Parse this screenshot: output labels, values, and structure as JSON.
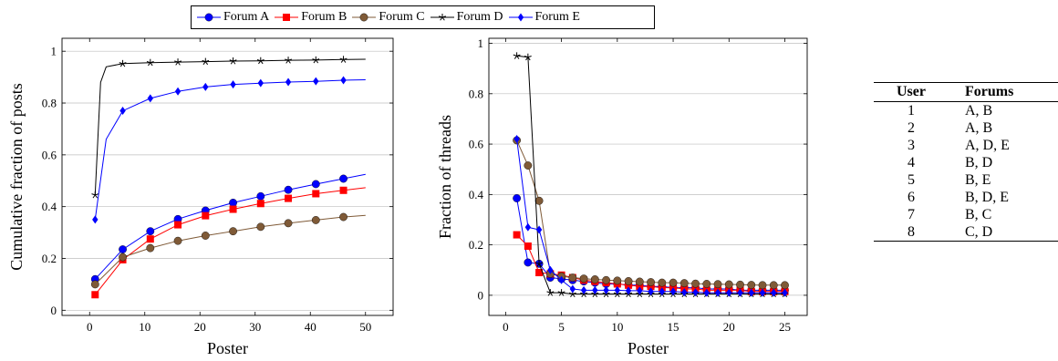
{
  "legend": [
    {
      "name": "Forum A",
      "color": "#0000ff",
      "marker": "circle"
    },
    {
      "name": "Forum B",
      "color": "#ff0000",
      "marker": "square"
    },
    {
      "name": "Forum C",
      "color": "#7f5a37",
      "marker": "circle"
    },
    {
      "name": "Forum D",
      "color": "#000000",
      "marker": "star"
    },
    {
      "name": "Forum E",
      "color": "#0000ff",
      "marker": "diamond"
    }
  ],
  "chart_data": [
    {
      "type": "line",
      "xlabel": "Poster",
      "ylabel": "Cumulative fraction of posts",
      "xlim": [
        -5,
        55
      ],
      "ylim": [
        -0.02,
        1.05
      ],
      "xticks": [
        0,
        10,
        20,
        30,
        40,
        50
      ],
      "yticks": [
        0,
        0.2,
        0.4,
        0.6,
        0.8,
        1
      ],
      "ytick_labels": [
        "0",
        "0.2",
        "0.4",
        "0.6",
        "0.8",
        "1"
      ],
      "grid": "horizontal",
      "series": [
        {
          "name": "Forum A",
          "x": [
            1,
            6,
            11,
            16,
            21,
            26,
            31,
            36,
            41,
            46,
            50
          ],
          "y": [
            0.12,
            0.235,
            0.305,
            0.352,
            0.385,
            0.415,
            0.44,
            0.465,
            0.487,
            0.508,
            0.525
          ],
          "marker_x": [
            1,
            6,
            11,
            16,
            21,
            26,
            31,
            36,
            41,
            46
          ]
        },
        {
          "name": "Forum B",
          "x": [
            1,
            6,
            11,
            16,
            21,
            26,
            31,
            36,
            41,
            46,
            50
          ],
          "y": [
            0.06,
            0.195,
            0.275,
            0.33,
            0.365,
            0.39,
            0.412,
            0.432,
            0.45,
            0.463,
            0.473
          ],
          "marker_x": [
            1,
            6,
            11,
            16,
            21,
            26,
            31,
            36,
            41,
            46
          ]
        },
        {
          "name": "Forum C",
          "x": [
            1,
            6,
            11,
            16,
            21,
            26,
            31,
            36,
            41,
            46,
            50
          ],
          "y": [
            0.1,
            0.205,
            0.24,
            0.268,
            0.288,
            0.305,
            0.322,
            0.336,
            0.348,
            0.36,
            0.366
          ],
          "marker_x": [
            1,
            6,
            11,
            16,
            21,
            26,
            31,
            36,
            41,
            46
          ]
        },
        {
          "name": "Forum D",
          "x": [
            1,
            2,
            3,
            6,
            11,
            16,
            21,
            26,
            31,
            36,
            41,
            46,
            50
          ],
          "y": [
            0.445,
            0.88,
            0.94,
            0.952,
            0.956,
            0.958,
            0.96,
            0.962,
            0.963,
            0.965,
            0.966,
            0.968,
            0.969
          ],
          "marker_x": [
            1,
            6,
            11,
            16,
            21,
            26,
            31,
            36,
            41,
            46
          ]
        },
        {
          "name": "Forum E",
          "x": [
            1,
            3,
            6,
            11,
            16,
            21,
            26,
            31,
            36,
            41,
            46,
            50
          ],
          "y": [
            0.35,
            0.66,
            0.77,
            0.818,
            0.845,
            0.862,
            0.872,
            0.877,
            0.881,
            0.884,
            0.888,
            0.89
          ],
          "marker_x": [
            1,
            6,
            11,
            16,
            21,
            26,
            31,
            36,
            41,
            46
          ]
        }
      ]
    },
    {
      "type": "line",
      "xlabel": "Poster",
      "ylabel": "Fraction of threads",
      "xlim": [
        -1.5,
        27
      ],
      "ylim": [
        -0.08,
        1.02
      ],
      "xticks": [
        0,
        5,
        10,
        15,
        20,
        25
      ],
      "yticks": [
        0,
        0.2,
        0.4,
        0.6,
        0.8,
        1
      ],
      "ytick_labels": [
        "0",
        "0.2",
        "0.4",
        "0.6",
        "0.8",
        "1"
      ],
      "grid": "horizontal",
      "series": [
        {
          "name": "Forum A",
          "x": [
            1,
            2,
            3,
            4,
            5,
            6,
            7,
            8,
            9,
            10,
            11,
            12,
            13,
            14,
            15,
            16,
            17,
            18,
            19,
            20,
            21,
            22,
            23,
            24,
            25
          ],
          "y": [
            0.385,
            0.13,
            0.125,
            0.07,
            0.065,
            0.06,
            0.055,
            0.05,
            0.045,
            0.045,
            0.04,
            0.04,
            0.035,
            0.035,
            0.03,
            0.03,
            0.03,
            0.025,
            0.025,
            0.025,
            0.02,
            0.02,
            0.02,
            0.02,
            0.02
          ]
        },
        {
          "name": "Forum B",
          "x": [
            1,
            2,
            3,
            4,
            5,
            6,
            7,
            8,
            9,
            10,
            11,
            12,
            13,
            14,
            15,
            16,
            17,
            18,
            19,
            20,
            21,
            22,
            23,
            24,
            25
          ],
          "y": [
            0.24,
            0.195,
            0.09,
            0.085,
            0.08,
            0.07,
            0.06,
            0.055,
            0.05,
            0.045,
            0.04,
            0.035,
            0.035,
            0.03,
            0.03,
            0.025,
            0.025,
            0.02,
            0.02,
            0.02,
            0.02,
            0.015,
            0.015,
            0.015,
            0.015
          ]
        },
        {
          "name": "Forum C",
          "x": [
            1,
            2,
            3,
            4,
            5,
            6,
            7,
            8,
            9,
            10,
            11,
            12,
            13,
            14,
            15,
            16,
            17,
            18,
            19,
            20,
            21,
            22,
            23,
            24,
            25
          ],
          "y": [
            0.615,
            0.515,
            0.375,
            0.085,
            0.075,
            0.07,
            0.066,
            0.063,
            0.06,
            0.058,
            0.056,
            0.054,
            0.052,
            0.05,
            0.05,
            0.048,
            0.046,
            0.045,
            0.044,
            0.043,
            0.042,
            0.041,
            0.04,
            0.04,
            0.04
          ]
        },
        {
          "name": "Forum D",
          "x": [
            1,
            2,
            3,
            4,
            5,
            6,
            7,
            8,
            9,
            10,
            11,
            12,
            13,
            14,
            15,
            16,
            17,
            18,
            19,
            20,
            21,
            22,
            23,
            24,
            25
          ],
          "y": [
            0.95,
            0.945,
            0.125,
            0.01,
            0.01,
            0.005,
            0.005,
            0.005,
            0.005,
            0.005,
            0.005,
            0.005,
            0.005,
            0.005,
            0.005,
            0.005,
            0.005,
            0.005,
            0.005,
            0.005,
            0.005,
            0.005,
            0.005,
            0.005,
            0.005
          ]
        },
        {
          "name": "Forum E",
          "x": [
            1,
            2,
            3,
            4,
            5,
            6,
            7,
            8,
            9,
            10,
            11,
            12,
            13,
            14,
            15,
            16,
            17,
            18,
            19,
            20,
            21,
            22,
            23,
            24,
            25
          ],
          "y": [
            0.62,
            0.27,
            0.26,
            0.1,
            0.06,
            0.025,
            0.02,
            0.02,
            0.02,
            0.02,
            0.018,
            0.018,
            0.015,
            0.015,
            0.015,
            0.012,
            0.012,
            0.01,
            0.01,
            0.01,
            0.01,
            0.01,
            0.01,
            0.01,
            0.01
          ]
        }
      ]
    },
    {
      "type": "table",
      "columns": [
        "User",
        "Forums"
      ],
      "rows": [
        [
          "1",
          "A, B"
        ],
        [
          "2",
          "A, B"
        ],
        [
          "3",
          "A, D, E"
        ],
        [
          "4",
          "B, D"
        ],
        [
          "5",
          "B, E"
        ],
        [
          "6",
          "B, D, E"
        ],
        [
          "7",
          "B, C"
        ],
        [
          "8",
          "C, D"
        ]
      ]
    }
  ]
}
